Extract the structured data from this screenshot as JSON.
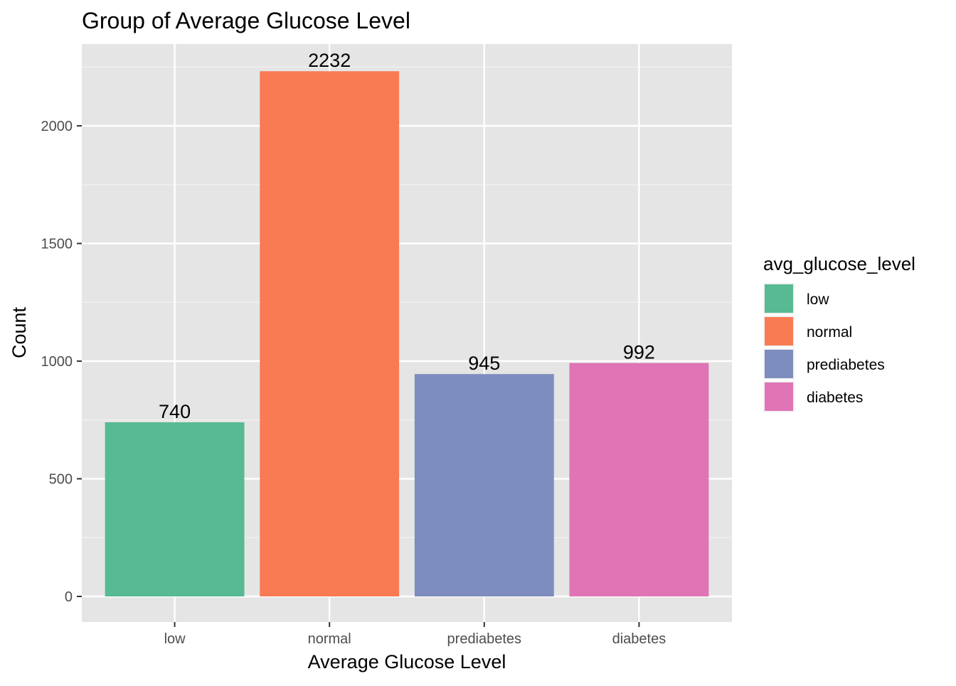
{
  "chart_data": {
    "type": "bar",
    "title": "Group of Average Glucose Level",
    "xlabel": "Average Glucose Level",
    "ylabel": "Count",
    "categories": [
      "low",
      "normal",
      "prediabetes",
      "diabetes"
    ],
    "values": [
      740,
      2232,
      945,
      992
    ],
    "data_labels": [
      "740",
      "2232",
      "945",
      "992"
    ],
    "colors": [
      "#57BA93",
      "#F97B53",
      "#7D8DBE",
      "#E074B5"
    ],
    "ylim": [
      -110,
      2330
    ],
    "yticks": [
      0,
      500,
      1000,
      1500,
      2000
    ],
    "ytick_labels": [
      "0",
      "500",
      "1000",
      "1500",
      "2000"
    ],
    "grid": true,
    "panel_background": "#E5E5E5",
    "legend": {
      "title": "avg_glucose_level",
      "position": "right",
      "items": [
        "low",
        "normal",
        "prediabetes",
        "diabetes"
      ]
    }
  }
}
